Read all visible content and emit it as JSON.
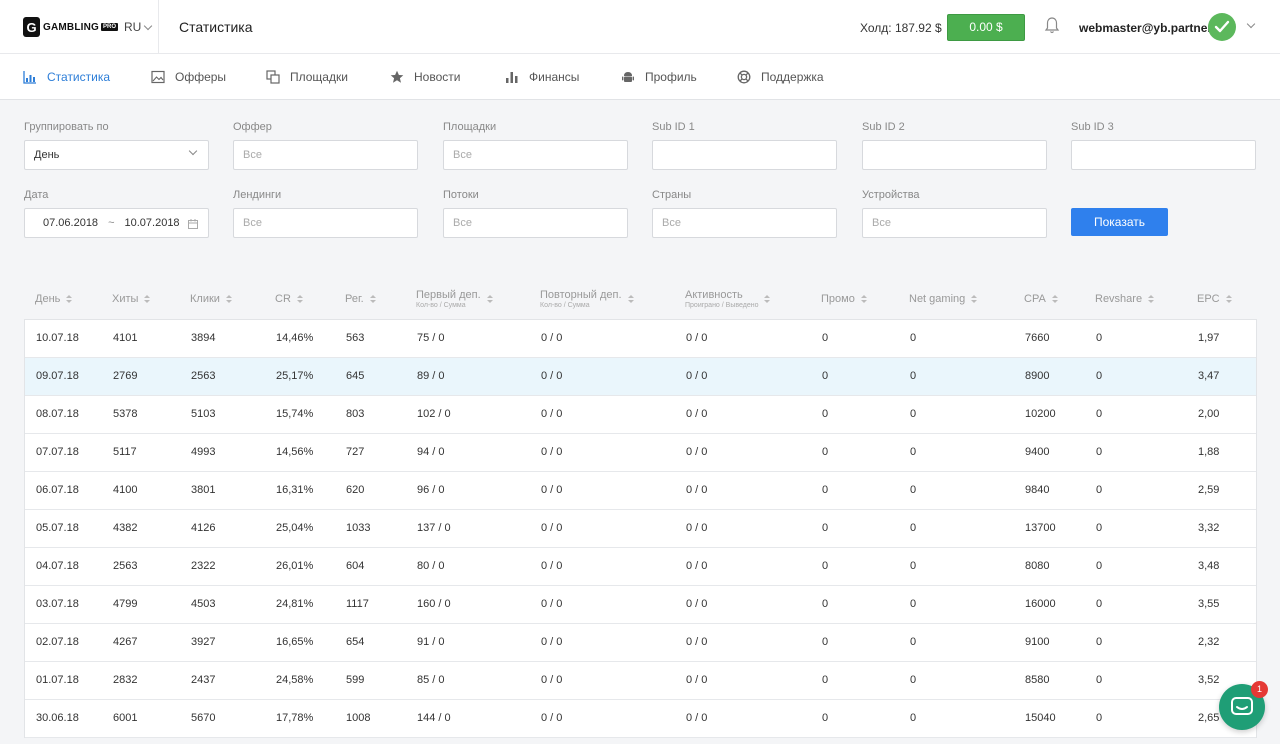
{
  "header": {
    "logo_text": "GAMBLING",
    "logo_badge": "PRO",
    "logo_letter": "G",
    "language": "RU",
    "page_title": "Статистика",
    "hold": "Холд: 187.92 $",
    "balance": "0.00 $",
    "email": "webmaster@yb.partners"
  },
  "nav": [
    {
      "label": "Статистика",
      "icon": "bar-chart-icon",
      "active": true
    },
    {
      "label": "Офферы",
      "icon": "image-icon"
    },
    {
      "label": "Площадки",
      "icon": "copy-icon"
    },
    {
      "label": "Новости",
      "icon": "star-icon"
    },
    {
      "label": "Финансы",
      "icon": "finance-chart-icon"
    },
    {
      "label": "Профиль",
      "icon": "android-icon"
    },
    {
      "label": "Поддержка",
      "icon": "lifebuoy-icon"
    }
  ],
  "filters": {
    "group_by_label": "Группировать по",
    "group_by_value": "День",
    "offer_label": "Оффер",
    "platforms_label": "Площадки",
    "subid1_label": "Sub ID 1",
    "subid2_label": "Sub ID 2",
    "subid3_label": "Sub ID 3",
    "date_label": "Дата",
    "date_from": "07.06.2018",
    "date_sep": "~",
    "date_to": "10.07.2018",
    "landings_label": "Лендинги",
    "streams_label": "Потоки",
    "countries_label": "Страны",
    "devices_label": "Устройства",
    "placeholder_all": "Все",
    "show_button": "Показать"
  },
  "table": {
    "columns": [
      {
        "label": "День"
      },
      {
        "label": "Хиты"
      },
      {
        "label": "Клики"
      },
      {
        "label": "CR"
      },
      {
        "label": "Рег."
      },
      {
        "label": "Первый деп.",
        "sub": "Кол-во / Сумма"
      },
      {
        "label": "Повторный деп.",
        "sub": "Кол-во / Сумма"
      },
      {
        "label": "Активность",
        "sub": "Проиграно / Выведено"
      },
      {
        "label": "Промо"
      },
      {
        "label": "Net gaming"
      },
      {
        "label": "CPA"
      },
      {
        "label": "Revshare"
      },
      {
        "label": "EPC"
      }
    ],
    "rows": [
      [
        "10.07.18",
        "4101",
        "3894",
        "14,46%",
        "563",
        "75 / 0",
        "0 / 0",
        "0 / 0",
        "0",
        "0",
        "7660",
        "0",
        "1,97"
      ],
      [
        "09.07.18",
        "2769",
        "2563",
        "25,17%",
        "645",
        "89 / 0",
        "0 / 0",
        "0 / 0",
        "0",
        "0",
        "8900",
        "0",
        "3,47"
      ],
      [
        "08.07.18",
        "5378",
        "5103",
        "15,74%",
        "803",
        "102 / 0",
        "0 / 0",
        "0 / 0",
        "0",
        "0",
        "10200",
        "0",
        "2,00"
      ],
      [
        "07.07.18",
        "5117",
        "4993",
        "14,56%",
        "727",
        "94 / 0",
        "0 / 0",
        "0 / 0",
        "0",
        "0",
        "9400",
        "0",
        "1,88"
      ],
      [
        "06.07.18",
        "4100",
        "3801",
        "16,31%",
        "620",
        "96 / 0",
        "0 / 0",
        "0 / 0",
        "0",
        "0",
        "9840",
        "0",
        "2,59"
      ],
      [
        "05.07.18",
        "4382",
        "4126",
        "25,04%",
        "1033",
        "137 / 0",
        "0 / 0",
        "0 / 0",
        "0",
        "0",
        "13700",
        "0",
        "3,32"
      ],
      [
        "04.07.18",
        "2563",
        "2322",
        "26,01%",
        "604",
        "80 / 0",
        "0 / 0",
        "0 / 0",
        "0",
        "0",
        "8080",
        "0",
        "3,48"
      ],
      [
        "03.07.18",
        "4799",
        "4503",
        "24,81%",
        "1117",
        "160 / 0",
        "0 / 0",
        "0 / 0",
        "0",
        "0",
        "16000",
        "0",
        "3,55"
      ],
      [
        "02.07.18",
        "4267",
        "3927",
        "16,65%",
        "654",
        "91 / 0",
        "0 / 0",
        "0 / 0",
        "0",
        "0",
        "9100",
        "0",
        "2,32"
      ],
      [
        "01.07.18",
        "2832",
        "2437",
        "24,58%",
        "599",
        "85 / 0",
        "0 / 0",
        "0 / 0",
        "0",
        "0",
        "8580",
        "0",
        "3,52"
      ],
      [
        "30.06.18",
        "6001",
        "5670",
        "17,78%",
        "1008",
        "144 / 0",
        "0 / 0",
        "0 / 0",
        "0",
        "0",
        "15040",
        "0",
        "2,65"
      ]
    ],
    "highlighted_row": 1
  },
  "chat": {
    "badge": "1"
  },
  "colors": {
    "accent": "#2f80ed",
    "balance": "#4caf50",
    "chat": "#1f9e76",
    "highlight": "#eaf6fc",
    "badge": "#e53935"
  }
}
